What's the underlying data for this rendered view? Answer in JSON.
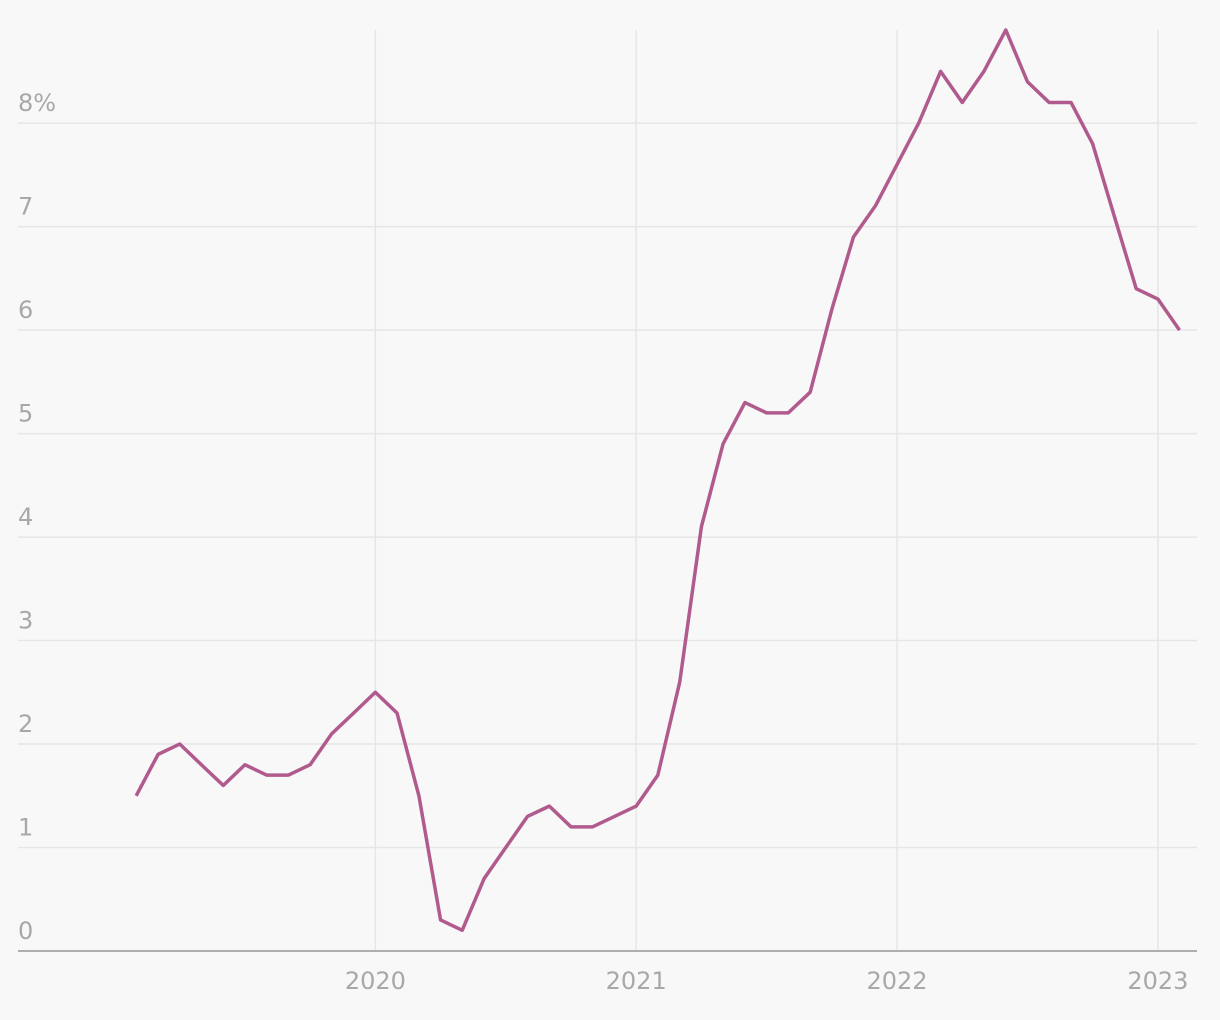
{
  "chart_data": {
    "type": "line",
    "x": [
      2019.083,
      2019.167,
      2019.25,
      2019.333,
      2019.417,
      2019.5,
      2019.583,
      2019.667,
      2019.75,
      2019.833,
      2019.917,
      2020.0,
      2020.083,
      2020.167,
      2020.25,
      2020.333,
      2020.417,
      2020.5,
      2020.583,
      2020.667,
      2020.75,
      2020.833,
      2020.917,
      2021.0,
      2021.083,
      2021.167,
      2021.25,
      2021.333,
      2021.417,
      2021.5,
      2021.583,
      2021.667,
      2021.75,
      2021.833,
      2021.917,
      2022.0,
      2022.083,
      2022.167,
      2022.25,
      2022.333,
      2022.417,
      2022.5,
      2022.583,
      2022.667,
      2022.75,
      2022.833,
      2022.917,
      2023.0,
      2023.083
    ],
    "series": [
      {
        "color": "#b05a8e",
        "values": [
          1.5,
          1.9,
          2.0,
          1.8,
          1.6,
          1.8,
          1.7,
          1.7,
          1.8,
          2.1,
          2.3,
          2.5,
          2.3,
          1.5,
          0.3,
          0.2,
          0.7,
          1.0,
          1.3,
          1.4,
          1.2,
          1.2,
          1.3,
          1.4,
          1.7,
          2.6,
          4.1,
          4.9,
          5.3,
          5.2,
          5.2,
          5.4,
          6.2,
          6.9,
          7.2,
          7.6,
          8.0,
          8.5,
          8.2,
          8.5,
          8.9,
          8.4,
          8.2,
          8.2,
          7.8,
          7.1,
          6.4,
          6.3,
          6.0
        ]
      }
    ],
    "xlim": [
      2018.63,
      2023.15
    ],
    "xticks": [
      2020,
      2021,
      2022,
      2023
    ],
    "ylim": [
      0,
      8.9
    ],
    "yticks": [
      0,
      1,
      2,
      3,
      4,
      5,
      6,
      7,
      {
        "value": 8,
        "label": "8%"
      }
    ],
    "grid": true
  }
}
